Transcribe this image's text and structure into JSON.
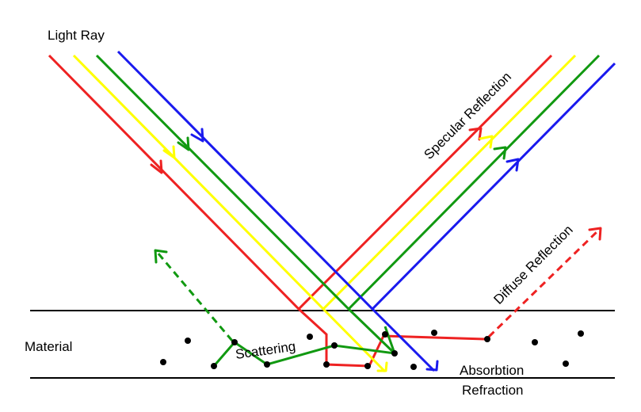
{
  "labels": {
    "light_ray": "Light Ray",
    "specular_reflection": "Specular Reflection",
    "diffuse_reflection": "Diffuse Reflection",
    "material": "Material",
    "scattering": "Scattering",
    "absorbtion": "Absorbtion",
    "refraction": "Refraction"
  },
  "colors": {
    "red": "#ee2222",
    "yellow": "#ffff00",
    "green": "#119911",
    "blue": "#1a1aee",
    "black": "#000000"
  }
}
